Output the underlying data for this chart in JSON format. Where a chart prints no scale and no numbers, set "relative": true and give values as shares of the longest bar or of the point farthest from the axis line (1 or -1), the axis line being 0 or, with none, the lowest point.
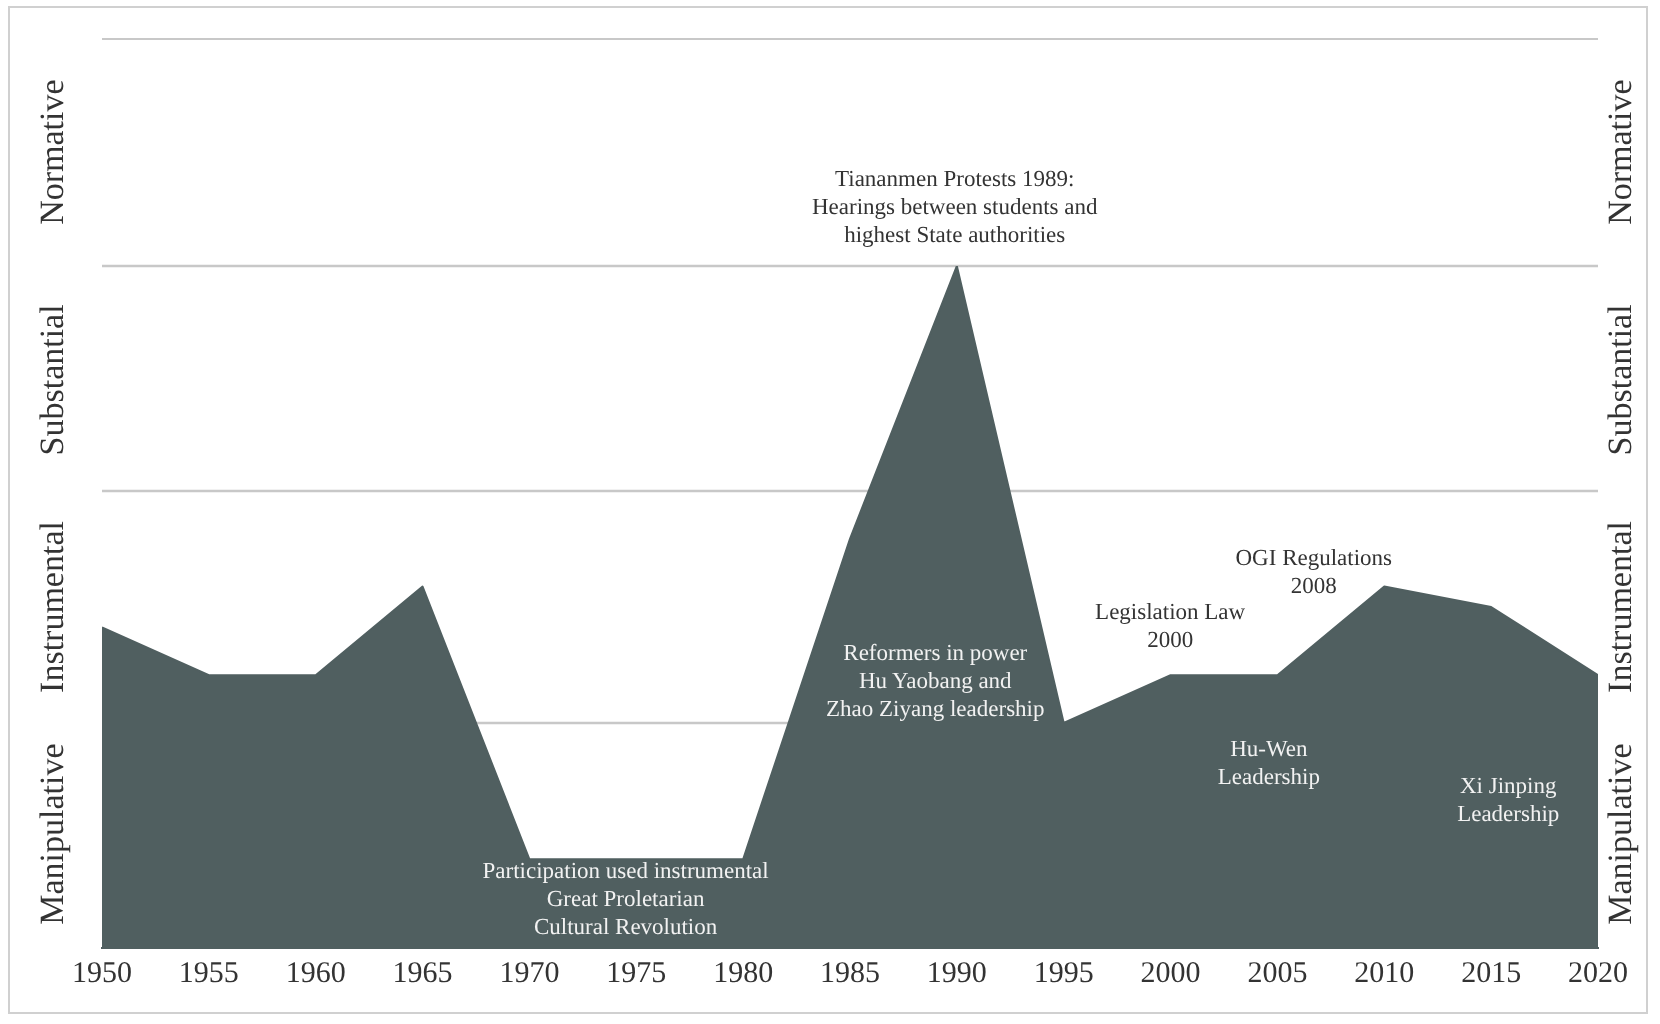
{
  "chart_data": {
    "type": "area",
    "relative": true,
    "x": [
      1950,
      1955,
      1960,
      1965,
      1970,
      1975,
      1980,
      1985,
      1990,
      1995,
      2000,
      2005,
      2010,
      2015,
      2020
    ],
    "series": [
      {
        "color": "#505f60",
        "values": [
          0.47,
          0.4,
          0.4,
          0.53,
          0.13,
          0.13,
          0.13,
          0.6,
          1,
          0.33,
          0.4,
          0.4,
          0.53,
          0.5,
          0.4
        ]
      }
    ],
    "xlim": [
      1950,
      2020
    ],
    "xticks": [
      1950,
      1955,
      1960,
      1965,
      1970,
      1975,
      1980,
      1985,
      1990,
      1995,
      2000,
      2005,
      2010,
      2015,
      2020
    ],
    "ref_lines": [
      {
        "axis": "y",
        "value": 0.33,
        "color": "#c8c8c8"
      },
      {
        "axis": "y",
        "value": 0.67,
        "color": "#c8c8c8"
      },
      {
        "axis": "y",
        "value": 1,
        "color": "#c8c8c8"
      }
    ],
    "annotations": [
      "Manipulative",
      "Instrumental",
      "Substantial",
      "Normative",
      "Tiananmen Protests 1989:\nHearings between students and\nhighest State authorities",
      "Reformers in power\nHu Yaobang and\nZhao Ziyang leadership",
      "Participation used instrumental\nGreat Proletarian\nCultural Revolution",
      "Legislation Law\n2000",
      "OGI Regulations\n2008",
      "Hu-Wen\nLeadership",
      "Xi Jinping\nLeadership"
    ],
    "grid": false,
    "legend": false
  }
}
